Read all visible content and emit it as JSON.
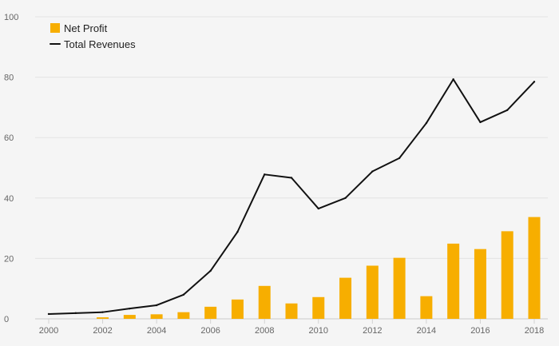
{
  "chart_data": {
    "type": "bar",
    "x": [
      2000,
      2001,
      2002,
      2003,
      2004,
      2005,
      2006,
      2007,
      2008,
      2009,
      2010,
      2011,
      2012,
      2013,
      2014,
      2015,
      2016,
      2017,
      2018
    ],
    "series": [
      {
        "name": "Net Profit",
        "type": "bar",
        "color": "#f7ae00",
        "values": [
          0.0,
          0.0,
          0.5,
          1.3,
          1.5,
          2.2,
          4.0,
          6.4,
          10.9,
          5.1,
          7.2,
          13.6,
          17.6,
          20.2,
          7.5,
          24.9,
          23.1,
          29.0,
          33.7
        ]
      },
      {
        "name": "Total Revenues",
        "type": "line",
        "color": "#111111",
        "values": [
          1.6,
          1.9,
          2.2,
          3.4,
          4.5,
          8.0,
          15.9,
          28.8,
          47.8,
          46.7,
          36.5,
          40.0,
          48.8,
          53.2,
          64.8,
          79.3,
          65.1,
          69.1,
          78.5
        ]
      }
    ],
    "title": "",
    "xlabel": "",
    "ylabel": "",
    "ylim": [
      0,
      100
    ],
    "yticks": [
      0,
      20,
      40,
      60,
      80,
      100
    ],
    "xticks": [
      2000,
      2002,
      2004,
      2006,
      2008,
      2010,
      2012,
      2014,
      2016,
      2018
    ],
    "grid": "horizontal",
    "legend_position": "top-left",
    "colors": {
      "background": "#f5f5f5",
      "grid": "#e3e3e3",
      "axis": "#cccccc",
      "text": "#666666"
    }
  }
}
